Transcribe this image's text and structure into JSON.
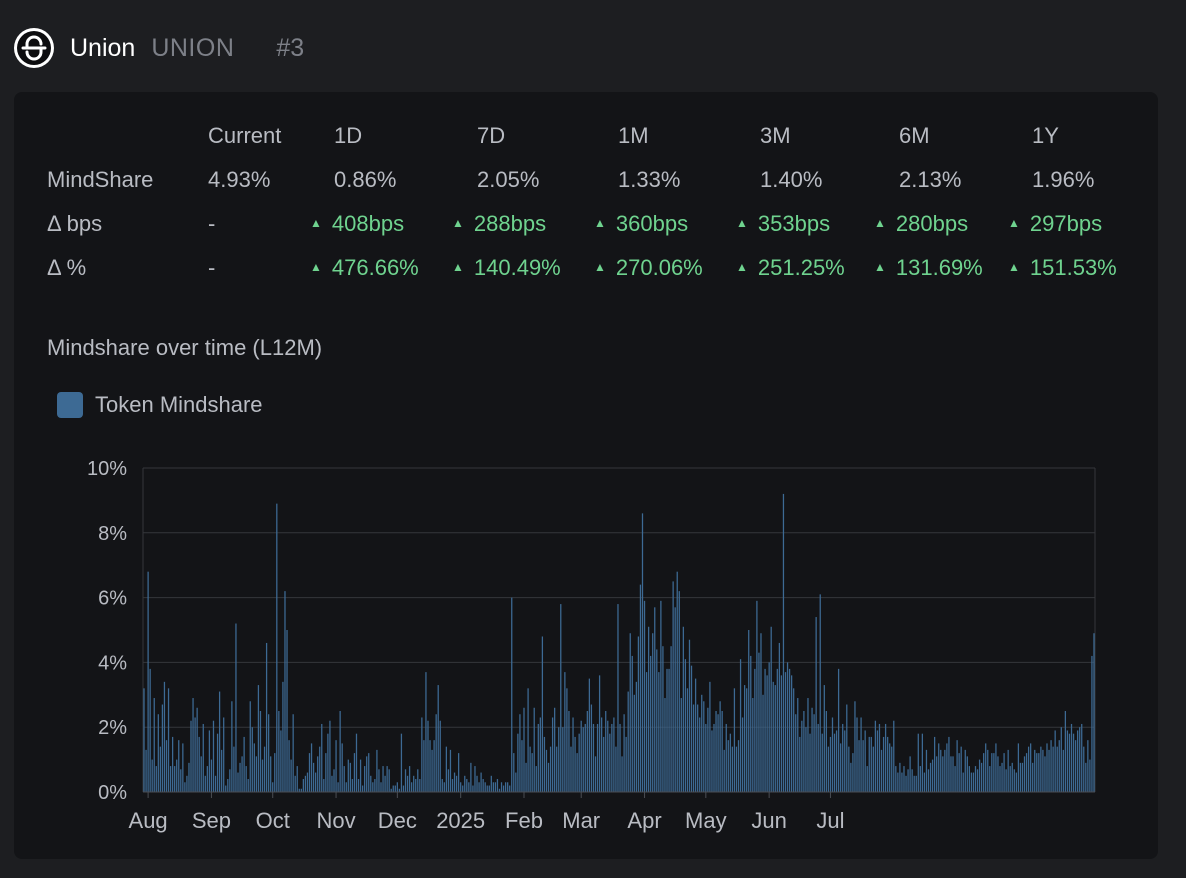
{
  "header": {
    "name": "Union",
    "ticker": "UNION",
    "rank": "#3",
    "logo_icon": "union-logo-icon"
  },
  "stats": {
    "columns": [
      "Current",
      "1D",
      "7D",
      "1M",
      "3M",
      "6M",
      "1Y"
    ],
    "mindshare": {
      "label": "MindShare",
      "values": [
        "4.93%",
        "0.86%",
        "2.05%",
        "1.33%",
        "1.40%",
        "2.13%",
        "1.96%"
      ]
    },
    "delta_bps": {
      "label": "Δ bps",
      "current": "-",
      "values": [
        "408bps",
        "288bps",
        "360bps",
        "353bps",
        "280bps",
        "297bps"
      ]
    },
    "delta_pct": {
      "label": "Δ %",
      "current": "-",
      "values": [
        "476.66%",
        "140.49%",
        "270.06%",
        "251.25%",
        "131.69%",
        "151.53%"
      ]
    },
    "up_color": "#6fd38f"
  },
  "chart_title": "Mindshare over time (L12M)",
  "chart_data": {
    "type": "bar",
    "legend": {
      "label": "Token Mindshare",
      "color": "#3d6a94",
      "placement": "top-left"
    },
    "ylim": [
      0,
      10
    ],
    "yticks": [
      "0%",
      "2%",
      "4%",
      "6%",
      "8%",
      "10%"
    ],
    "xticks": [
      {
        "label": "Aug",
        "day": 2
      },
      {
        "label": "Sep",
        "day": 33
      },
      {
        "label": "Oct",
        "day": 63
      },
      {
        "label": "Nov",
        "day": 94
      },
      {
        "label": "Dec",
        "day": 124
      },
      {
        "label": "2025",
        "day": 155
      },
      {
        "label": "Feb",
        "day": 186
      },
      {
        "label": "Mar",
        "day": 214
      },
      {
        "label": "Apr",
        "day": 245
      },
      {
        "label": "May",
        "day": 275
      },
      {
        "label": "Jun",
        "day": 306
      },
      {
        "label": "Jul",
        "day": 336
      }
    ],
    "grid": true,
    "bar_color": "#3d6a94",
    "values": [
      3.2,
      1.3,
      6.8,
      3.8,
      1.0,
      2.9,
      0.8,
      2.4,
      1.4,
      2.7,
      3.4,
      1.6,
      3.2,
      0.8,
      1.7,
      0.8,
      1.0,
      1.6,
      0.7,
      1.5,
      0.3,
      0.5,
      0.9,
      2.2,
      2.9,
      2.3,
      2.6,
      1.7,
      1.1,
      2.1,
      0.5,
      0.8,
      1.9,
      1.0,
      2.2,
      0.5,
      1.8,
      3.1,
      1.3,
      2.3,
      0.2,
      0.4,
      0.7,
      2.8,
      1.4,
      5.2,
      0.6,
      0.9,
      1.1,
      1.7,
      0.8,
      0.4,
      2.8,
      2.0,
      1.5,
      1.1,
      3.3,
      2.5,
      1.0,
      1.4,
      4.6,
      2.4,
      1.1,
      0.3,
      1.2,
      8.9,
      2.5,
      1.9,
      3.4,
      6.2,
      5.0,
      1.6,
      1.0,
      2.4,
      0.5,
      0.8,
      0.1,
      0.1,
      0.4,
      0.5,
      0.6,
      1.2,
      1.5,
      0.9,
      0.6,
      1.1,
      1.4,
      2.1,
      0.4,
      1.2,
      1.8,
      2.2,
      0.5,
      0.7,
      1.6,
      0.3,
      2.5,
      1.5,
      0.8,
      0.3,
      1.0,
      0.9,
      0.4,
      1.2,
      1.8,
      0.4,
      1.0,
      0.2,
      0.8,
      1.1,
      1.2,
      0.5,
      0.3,
      0.4,
      1.3,
      0.7,
      0.3,
      0.8,
      0.5,
      0.8,
      0.7,
      0.1,
      0.2,
      0.2,
      0.3,
      0.1,
      1.8,
      0.2,
      0.7,
      0.5,
      0.8,
      0.3,
      0.5,
      0.4,
      0.7,
      0.4,
      2.3,
      1.6,
      3.7,
      2.2,
      1.6,
      1.3,
      1.6,
      2.4,
      3.3,
      2.2,
      0.4,
      0.3,
      1.4,
      0.7,
      1.3,
      0.4,
      0.6,
      0.5,
      1.2,
      0.3,
      0.2,
      0.5,
      0.4,
      0.3,
      0.9,
      0.2,
      0.8,
      0.5,
      0.3,
      0.6,
      0.4,
      0.3,
      0.2,
      0.2,
      0.5,
      0.3,
      0.3,
      0.4,
      0.1,
      0.3,
      0.2,
      0.3,
      0.3,
      0.2,
      6.0,
      1.2,
      0.6,
      1.8,
      2.4,
      1.6,
      2.6,
      0.9,
      3.2,
      1.4,
      1.2,
      2.6,
      0.8,
      2.1,
      2.3,
      4.8,
      1.7,
      1.3,
      0.9,
      1.4,
      2.3,
      2.6,
      1.4,
      2.0,
      5.8,
      2.0,
      3.7,
      3.2,
      2.5,
      1.4,
      2.3,
      1.7,
      1.2,
      1.8,
      2.2,
      2.0,
      2.1,
      2.5,
      3.5,
      2.7,
      2.1,
      1.1,
      2.1,
      3.6,
      2.3,
      1.7,
      2.5,
      2.2,
      1.8,
      2.1,
      2.3,
      1.4,
      5.8,
      2.1,
      1.1,
      2.4,
      1.7,
      3.1,
      4.9,
      4.2,
      3.0,
      3.4,
      4.8,
      6.4,
      8.6,
      5.9,
      3.7,
      5.1,
      4.2,
      4.9,
      5.7,
      4.4,
      3.7,
      5.9,
      4.5,
      2.9,
      3.8,
      3.8,
      4.5,
      6.5,
      5.7,
      6.8,
      6.2,
      2.9,
      5.1,
      4.1,
      3.2,
      4.7,
      3.9,
      2.7,
      3.5,
      2.7,
      2.3,
      3.0,
      2.8,
      2.1,
      2.6,
      3.4,
      1.9,
      2.1,
      2.5,
      2.4,
      2.8,
      2.5,
      1.3,
      2.1,
      1.6,
      1.8,
      1.4,
      3.2,
      1.4,
      1.6,
      4.1,
      2.3,
      3.3,
      3.2,
      5.0,
      4.2,
      2.9,
      3.8,
      5.9,
      4.3,
      4.9,
      3.0,
      3.8,
      3.6,
      4.0,
      5.1,
      3.4,
      3.3,
      3.8,
      4.6,
      3.6,
      9.2,
      3.7,
      4.0,
      3.8,
      3.6,
      3.2,
      2.4,
      2.9,
      1.7,
      2.2,
      2.5,
      2.0,
      2.9,
      1.8,
      2.6,
      2.4,
      5.4,
      2.1,
      6.1,
      1.8,
      3.3,
      2.5,
      1.4,
      1.7,
      2.3,
      1.8,
      1.9,
      3.8,
      1.5,
      2.1,
      1.9,
      2.7,
      1.4,
      0.9,
      1.2,
      2.8,
      2.3,
      1.6,
      2.3,
      1.6,
      1.9,
      0.8,
      1.7,
      1.7,
      1.4,
      2.2,
      1.9,
      2.1,
      1.3,
      1.7,
      2.1,
      1.7,
      1.5,
      1.4,
      2.2,
      0.8,
      0.6,
      0.9,
      0.6,
      0.8,
      0.5,
      0.7,
      1.1,
      0.7,
      0.5,
      0.5,
      1.8,
      0.8,
      1.8,
      0.6,
      1.3,
      0.7,
      0.9,
      1.0,
      1.7,
      1.1,
      1.5,
      1.3,
      1.1,
      1.3,
      1.5,
      1.7,
      1.1,
      1.1,
      0.8,
      1.6,
      1.2,
      1.4,
      0.6,
      1.3,
      1.1,
      0.8,
      0.6,
      0.6,
      0.8,
      0.7,
      1.0,
      0.9,
      1.2,
      1.5,
      1.3,
      0.8,
      1.2,
      1.2,
      1.5,
      1.1,
      0.8,
      0.9,
      1.2,
      0.7,
      1.3,
      0.8,
      0.9,
      0.7,
      0.6,
      1.5,
      0.9,
      0.9,
      1.1,
      1.2,
      1.4,
      1.5,
      0.9,
      1.3,
      1.2,
      1.2,
      1.4,
      1.3,
      1.1,
      1.5,
      1.3,
      1.6,
      1.4,
      1.9,
      1.4,
      1.6,
      2.0,
      1.3,
      2.5,
      1.9,
      1.8,
      2.1,
      1.8,
      1.6,
      1.9,
      2.0,
      2.1,
      1.4,
      0.9,
      1.6,
      1.0,
      4.2,
      4.9
    ]
  }
}
